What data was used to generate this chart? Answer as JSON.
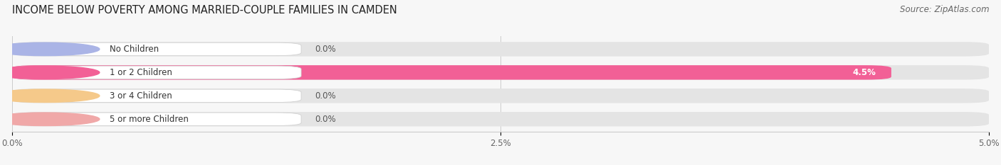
{
  "title": "INCOME BELOW POVERTY AMONG MARRIED-COUPLE FAMILIES IN CAMDEN",
  "source": "Source: ZipAtlas.com",
  "categories": [
    "No Children",
    "1 or 2 Children",
    "3 or 4 Children",
    "5 or more Children"
  ],
  "values": [
    0.0,
    4.5,
    0.0,
    0.0
  ],
  "bar_colors": [
    "#aab4e6",
    "#f26096",
    "#f5c98a",
    "#f0a8a8"
  ],
  "xlim": [
    0,
    5.0
  ],
  "xticks": [
    0.0,
    2.5,
    5.0
  ],
  "xticklabels": [
    "0.0%",
    "2.5%",
    "5.0%"
  ],
  "background_color": "#f7f7f7",
  "bar_bg_color": "#e4e4e4",
  "title_fontsize": 10.5,
  "source_fontsize": 8.5,
  "label_fontsize": 8.5,
  "value_fontsize": 8.5
}
